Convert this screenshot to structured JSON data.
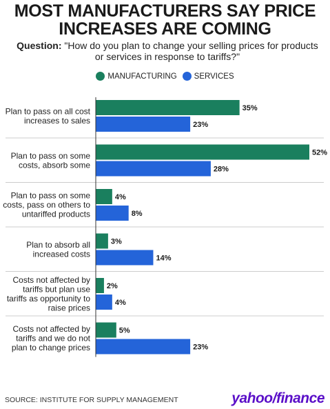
{
  "header": {
    "title_line1": "MOST MANUFACTURERS SAY PRICE",
    "title_line2": "INCREASES ARE COMING",
    "question_label": "Question:",
    "question_line1": "\"How do you plan to change your selling prices for products",
    "question_line2": "or services in response to tariffs?\""
  },
  "footer": {
    "source": "SOURCE: INSTITUTE FOR SUPPLY MANAGEMENT",
    "brand": "yahoo/finance"
  },
  "colors": {
    "manufacturing": "#1a7f5e",
    "services": "#2464d9",
    "text": "#1a1a1a",
    "divider": "#cccccc"
  },
  "chart_data": {
    "type": "bar",
    "orientation": "horizontal",
    "legend_position": "top",
    "value_suffix": "%",
    "xlim": [
      0,
      52
    ],
    "grid": false,
    "categories": [
      [
        "Plan to pass on all cost",
        "increases to sales"
      ],
      [
        "Plan to pass on some",
        "costs, absorb some"
      ],
      [
        "Plan to pass on some",
        "costs, pass on others to",
        "untariffed products"
      ],
      [
        "Plan to absorb all",
        "increased costs"
      ],
      [
        "Costs not affected by",
        "tariffs but plan use",
        "tariffs as opportunity to",
        "raise prices"
      ],
      [
        "Costs not affected by",
        "tariffs and we do not",
        "plan to change prices"
      ]
    ],
    "series": [
      {
        "name": "MANUFACTURING",
        "values": [
          35,
          52,
          4,
          3,
          2,
          5
        ]
      },
      {
        "name": "SERVICES",
        "values": [
          23,
          28,
          8,
          14,
          4,
          23
        ]
      }
    ]
  }
}
